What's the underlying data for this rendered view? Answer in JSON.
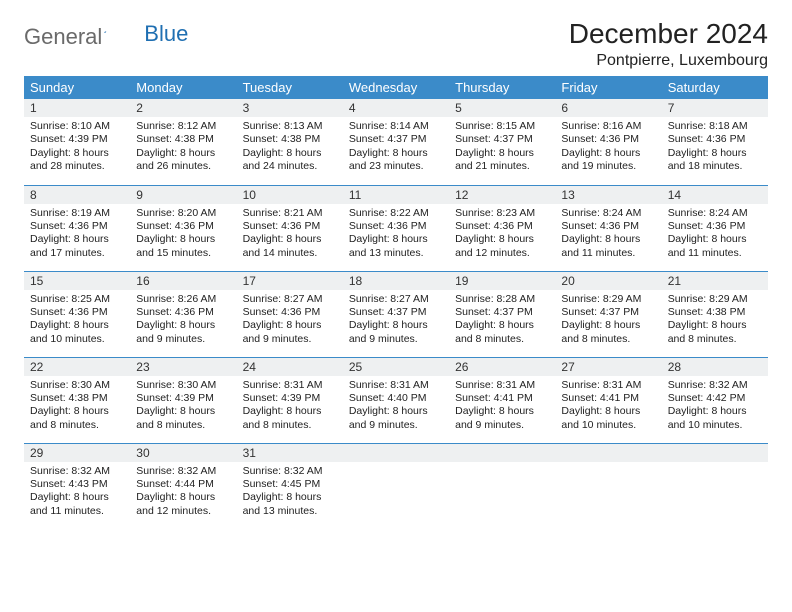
{
  "brand": {
    "part1": "General",
    "part2": "Blue"
  },
  "title": "December 2024",
  "location": "Pontpierre, Luxembourg",
  "colors": {
    "header_bg": "#3b8bc9",
    "header_fg": "#ffffff",
    "daynum_bg": "#eef0f1",
    "rule": "#3b8bc9",
    "brand_gray": "#6a6a6a",
    "brand_blue": "#1f6fb2"
  },
  "dayNames": [
    "Sunday",
    "Monday",
    "Tuesday",
    "Wednesday",
    "Thursday",
    "Friday",
    "Saturday"
  ],
  "weeks": [
    [
      {
        "n": "1",
        "sr": "8:10 AM",
        "ss": "4:39 PM",
        "dl": "8 hours and 28 minutes."
      },
      {
        "n": "2",
        "sr": "8:12 AM",
        "ss": "4:38 PM",
        "dl": "8 hours and 26 minutes."
      },
      {
        "n": "3",
        "sr": "8:13 AM",
        "ss": "4:38 PM",
        "dl": "8 hours and 24 minutes."
      },
      {
        "n": "4",
        "sr": "8:14 AM",
        "ss": "4:37 PM",
        "dl": "8 hours and 23 minutes."
      },
      {
        "n": "5",
        "sr": "8:15 AM",
        "ss": "4:37 PM",
        "dl": "8 hours and 21 minutes."
      },
      {
        "n": "6",
        "sr": "8:16 AM",
        "ss": "4:36 PM",
        "dl": "8 hours and 19 minutes."
      },
      {
        "n": "7",
        "sr": "8:18 AM",
        "ss": "4:36 PM",
        "dl": "8 hours and 18 minutes."
      }
    ],
    [
      {
        "n": "8",
        "sr": "8:19 AM",
        "ss": "4:36 PM",
        "dl": "8 hours and 17 minutes."
      },
      {
        "n": "9",
        "sr": "8:20 AM",
        "ss": "4:36 PM",
        "dl": "8 hours and 15 minutes."
      },
      {
        "n": "10",
        "sr": "8:21 AM",
        "ss": "4:36 PM",
        "dl": "8 hours and 14 minutes."
      },
      {
        "n": "11",
        "sr": "8:22 AM",
        "ss": "4:36 PM",
        "dl": "8 hours and 13 minutes."
      },
      {
        "n": "12",
        "sr": "8:23 AM",
        "ss": "4:36 PM",
        "dl": "8 hours and 12 minutes."
      },
      {
        "n": "13",
        "sr": "8:24 AM",
        "ss": "4:36 PM",
        "dl": "8 hours and 11 minutes."
      },
      {
        "n": "14",
        "sr": "8:24 AM",
        "ss": "4:36 PM",
        "dl": "8 hours and 11 minutes."
      }
    ],
    [
      {
        "n": "15",
        "sr": "8:25 AM",
        "ss": "4:36 PM",
        "dl": "8 hours and 10 minutes."
      },
      {
        "n": "16",
        "sr": "8:26 AM",
        "ss": "4:36 PM",
        "dl": "8 hours and 9 minutes."
      },
      {
        "n": "17",
        "sr": "8:27 AM",
        "ss": "4:36 PM",
        "dl": "8 hours and 9 minutes."
      },
      {
        "n": "18",
        "sr": "8:27 AM",
        "ss": "4:37 PM",
        "dl": "8 hours and 9 minutes."
      },
      {
        "n": "19",
        "sr": "8:28 AM",
        "ss": "4:37 PM",
        "dl": "8 hours and 8 minutes."
      },
      {
        "n": "20",
        "sr": "8:29 AM",
        "ss": "4:37 PM",
        "dl": "8 hours and 8 minutes."
      },
      {
        "n": "21",
        "sr": "8:29 AM",
        "ss": "4:38 PM",
        "dl": "8 hours and 8 minutes."
      }
    ],
    [
      {
        "n": "22",
        "sr": "8:30 AM",
        "ss": "4:38 PM",
        "dl": "8 hours and 8 minutes."
      },
      {
        "n": "23",
        "sr": "8:30 AM",
        "ss": "4:39 PM",
        "dl": "8 hours and 8 minutes."
      },
      {
        "n": "24",
        "sr": "8:31 AM",
        "ss": "4:39 PM",
        "dl": "8 hours and 8 minutes."
      },
      {
        "n": "25",
        "sr": "8:31 AM",
        "ss": "4:40 PM",
        "dl": "8 hours and 9 minutes."
      },
      {
        "n": "26",
        "sr": "8:31 AM",
        "ss": "4:41 PM",
        "dl": "8 hours and 9 minutes."
      },
      {
        "n": "27",
        "sr": "8:31 AM",
        "ss": "4:41 PM",
        "dl": "8 hours and 10 minutes."
      },
      {
        "n": "28",
        "sr": "8:32 AM",
        "ss": "4:42 PM",
        "dl": "8 hours and 10 minutes."
      }
    ],
    [
      {
        "n": "29",
        "sr": "8:32 AM",
        "ss": "4:43 PM",
        "dl": "8 hours and 11 minutes."
      },
      {
        "n": "30",
        "sr": "8:32 AM",
        "ss": "4:44 PM",
        "dl": "8 hours and 12 minutes."
      },
      {
        "n": "31",
        "sr": "8:32 AM",
        "ss": "4:45 PM",
        "dl": "8 hours and 13 minutes."
      },
      null,
      null,
      null,
      null
    ]
  ],
  "labels": {
    "sunrise": "Sunrise:",
    "sunset": "Sunset:",
    "daylight": "Daylight:"
  }
}
